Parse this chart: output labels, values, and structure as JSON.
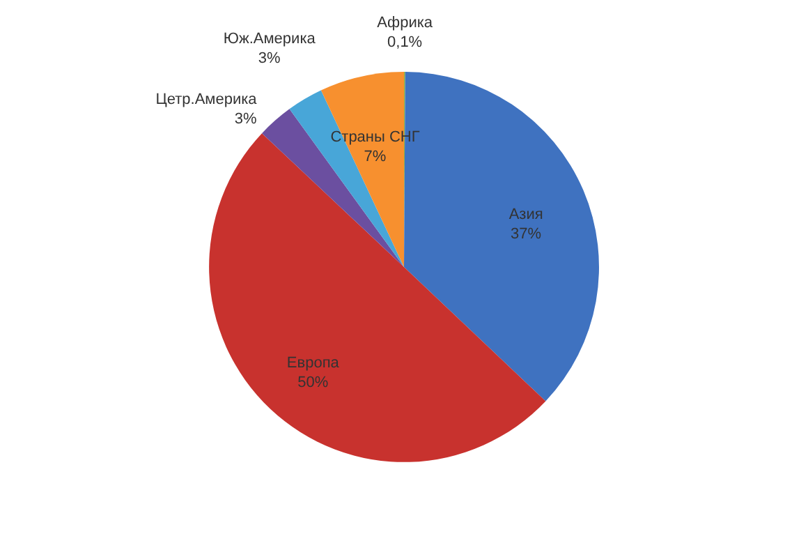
{
  "chart_data": {
    "type": "pie",
    "categories": [
      "Африка",
      "Азия",
      "Европа",
      "Цетр.Америка",
      "Юж.Америка",
      "Страны СНГ"
    ],
    "values": [
      0.1,
      37,
      50,
      3,
      3,
      7
    ],
    "colors": [
      "#8cb044",
      "#3f72c0",
      "#c8322e",
      "#6b4fa0",
      "#48a6d8",
      "#f7902f"
    ],
    "value_labels": [
      "0,1%",
      "37%",
      "50%",
      "3%",
      "3%",
      "7%"
    ],
    "legend": false
  }
}
